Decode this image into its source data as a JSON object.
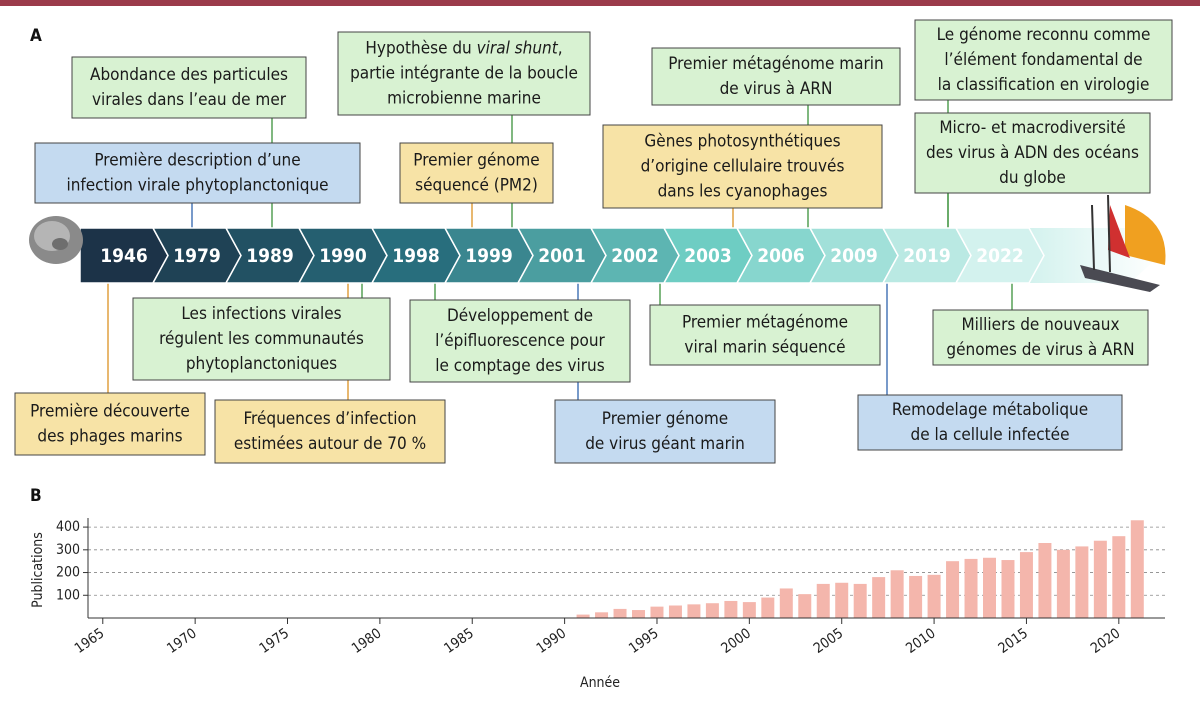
{
  "labels": {
    "a": "A",
    "b": "B"
  },
  "timeline": {
    "years": [
      "1946",
      "1979",
      "1989",
      "1990",
      "1998",
      "1999",
      "2001",
      "2002",
      "2003",
      "2006",
      "2009",
      "2019",
      "2022"
    ],
    "events": [
      {
        "lines": [
          "Abondance des particules",
          "virales dans l’eau de mer"
        ],
        "color": "#d8f2d2"
      },
      {
        "lines": [
          "Première description d’une",
          "infection virale phytoplanctonique"
        ],
        "color": "#c4daf0"
      },
      {
        "lines": [
          [
            {
              "text": "Hypothèse du "
            },
            {
              "text": "viral shunt",
              "italic": true
            },
            {
              "text": ","
            }
          ],
          "partie intégrante de la boucle",
          "microbienne marine"
        ],
        "color": "#d8f2d2"
      },
      {
        "lines": [
          "Premier génome",
          "séquencé (PM2)"
        ],
        "color": "#f7e3a6"
      },
      {
        "lines": [
          "Premier métagénome marin",
          "de virus à ARN"
        ],
        "color": "#d8f2d2"
      },
      {
        "lines": [
          "Gènes photosynthétiques",
          "d’origine cellulaire trouvés",
          "dans les cyanophages"
        ],
        "color": "#f7e3a6"
      },
      {
        "lines": [
          "Le génome reconnu comme",
          "l’élément fondamental de",
          "la classification en virologie"
        ],
        "color": "#d8f2d2"
      },
      {
        "lines": [
          "Micro- et macrodiversité",
          "des virus à ADN des océans",
          "du globe"
        ],
        "color": "#d8f2d2"
      },
      {
        "lines": [
          "Les infections virales",
          "régulent les communautés",
          "phytoplanctoniques"
        ],
        "color": "#d8f2d2"
      },
      {
        "lines": [
          "Première découverte",
          "des phages marins"
        ],
        "color": "#f7e3a6"
      },
      {
        "lines": [
          "Fréquences d’infection",
          "estimées autour de 70 %"
        ],
        "color": "#f7e3a6"
      },
      {
        "lines": [
          "Développement de",
          "l’épifluorescence pour",
          "le comptage des virus"
        ],
        "color": "#d8f2d2"
      },
      {
        "lines": [
          "Premier génome",
          "de virus géant marin"
        ],
        "color": "#c4daf0"
      },
      {
        "lines": [
          "Premier métagénome",
          "viral marin séquencé"
        ],
        "color": "#d8f2d2"
      },
      {
        "lines": [
          "Remodelage métabolique",
          "de la cellule infectée"
        ],
        "color": "#c4daf0"
      },
      {
        "lines": [
          "Milliers de nouveaux",
          "génomes de virus à ARN"
        ],
        "color": "#d8f2d2"
      }
    ]
  },
  "chart_data": {
    "type": "bar",
    "x_label": "Année",
    "y_label": "Publications",
    "x": [
      1991,
      1992,
      1993,
      1994,
      1995,
      1996,
      1997,
      1998,
      1999,
      2000,
      2001,
      2002,
      2003,
      2004,
      2005,
      2006,
      2007,
      2008,
      2009,
      2010,
      2011,
      2012,
      2013,
      2014,
      2015,
      2016,
      2017,
      2018,
      2019,
      2020,
      2021
    ],
    "values": [
      15,
      25,
      40,
      35,
      50,
      55,
      60,
      65,
      75,
      70,
      90,
      130,
      105,
      150,
      155,
      150,
      180,
      210,
      185,
      190,
      250,
      260,
      265,
      255,
      290,
      330,
      300,
      315,
      340,
      360,
      430
    ],
    "color": "#f4b6ac",
    "xlim": [
      1964.2,
      2022.5
    ],
    "xticks": [
      1965,
      1970,
      1975,
      1980,
      1985,
      1990,
      1995,
      2000,
      2005,
      2010,
      2015,
      2020
    ],
    "ylim": [
      0,
      440
    ],
    "yticks": [
      100,
      200,
      300,
      400
    ],
    "grid": true
  }
}
